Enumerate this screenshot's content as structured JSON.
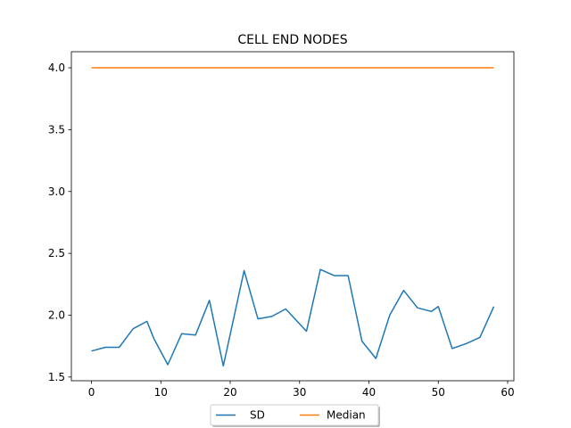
{
  "chart_data": {
    "type": "line",
    "title": "CELL END NODES",
    "xlabel": "",
    "ylabel": "",
    "xlim": [
      -2.9,
      60.9
    ],
    "ylim": [
      1.47,
      4.13
    ],
    "xticks": [
      0,
      10,
      20,
      30,
      40,
      50,
      60
    ],
    "yticks": [
      1.5,
      2.0,
      2.5,
      3.0,
      3.5,
      4.0
    ],
    "ytick_labels": [
      "1.5",
      "2.0",
      "2.5",
      "3.0",
      "3.5",
      "4.0"
    ],
    "grid": false,
    "legend_position": "bottom-center",
    "series": [
      {
        "name": "SD",
        "color": "#1f77b4",
        "x": [
          0,
          2,
          4,
          6,
          8,
          9,
          11,
          13,
          15,
          17,
          19,
          22,
          24,
          26,
          28,
          31,
          33,
          35,
          37,
          39,
          41,
          43,
          45,
          47,
          49,
          50,
          52,
          54,
          56,
          58
        ],
        "y": [
          1.71,
          1.74,
          1.74,
          1.89,
          1.95,
          1.81,
          1.6,
          1.85,
          1.84,
          2.12,
          1.59,
          2.36,
          1.97,
          1.99,
          2.05,
          1.87,
          2.37,
          2.32,
          2.32,
          1.79,
          1.65,
          2.0,
          2.2,
          2.06,
          2.03,
          2.07,
          1.73,
          1.77,
          1.82,
          2.07
        ]
      },
      {
        "name": "Median",
        "color": "#ff7f0e",
        "x": [
          0,
          58
        ],
        "y": [
          4.0,
          4.0
        ]
      }
    ]
  }
}
